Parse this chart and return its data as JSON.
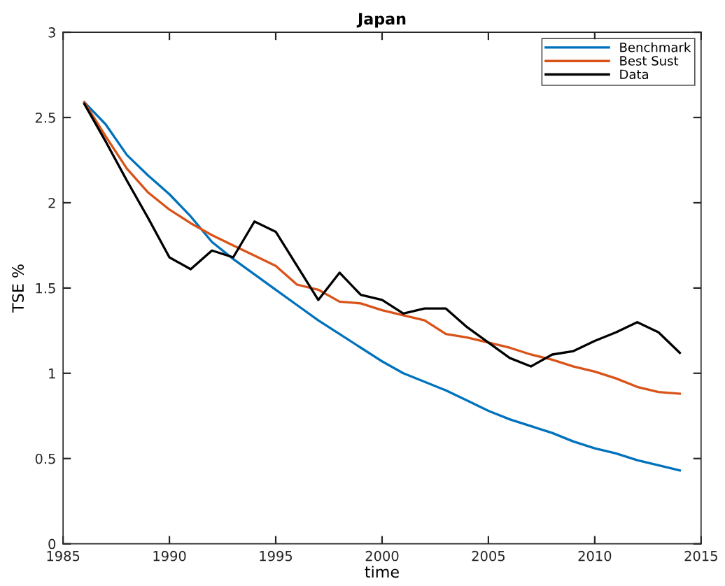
{
  "chart_data": {
    "type": "line",
    "title": "Japan",
    "xlabel": "time",
    "ylabel": "TSE %",
    "x": [
      1986,
      1987,
      1988,
      1989,
      1990,
      1991,
      1992,
      1993,
      1994,
      1995,
      1996,
      1997,
      1998,
      1999,
      2000,
      2001,
      2002,
      2003,
      2004,
      2005,
      2006,
      2007,
      2008,
      2009,
      2010,
      2011,
      2012,
      2013,
      2014
    ],
    "series": [
      {
        "name": "Benchmark",
        "color": "#0072bd",
        "values": [
          2.59,
          2.46,
          2.28,
          2.16,
          2.05,
          1.92,
          1.77,
          1.67,
          1.58,
          1.49,
          1.4,
          1.31,
          1.23,
          1.15,
          1.07,
          1.0,
          0.95,
          0.9,
          0.84,
          0.78,
          0.73,
          0.69,
          0.65,
          0.6,
          0.56,
          0.53,
          0.49,
          0.46,
          0.43
        ]
      },
      {
        "name": "Best Sust",
        "color": "#d95319",
        "values": [
          2.59,
          2.39,
          2.2,
          2.06,
          1.96,
          1.88,
          1.81,
          1.75,
          1.69,
          1.63,
          1.52,
          1.49,
          1.42,
          1.41,
          1.37,
          1.34,
          1.31,
          1.23,
          1.21,
          1.18,
          1.15,
          1.11,
          1.08,
          1.04,
          1.01,
          0.97,
          0.92,
          0.89,
          0.88
        ]
      },
      {
        "name": "Data",
        "color": "#000000",
        "values": [
          2.58,
          2.36,
          2.13,
          1.91,
          1.68,
          1.61,
          1.72,
          1.68,
          1.89,
          1.83,
          1.63,
          1.43,
          1.59,
          1.46,
          1.43,
          1.35,
          1.38,
          1.38,
          1.27,
          1.18,
          1.09,
          1.04,
          1.11,
          1.13,
          1.19,
          1.24,
          1.3,
          1.24,
          1.12
        ]
      }
    ],
    "xlim": [
      1985,
      2015
    ],
    "xticks": [
      1985,
      1990,
      1995,
      2000,
      2005,
      2010,
      2015
    ],
    "ylim": [
      0,
      3
    ],
    "yticks": [
      0,
      0.5,
      1,
      1.5,
      2,
      2.5,
      3
    ],
    "grid": false,
    "legend": "top right",
    "marker": "none",
    "line_style": "solid"
  }
}
